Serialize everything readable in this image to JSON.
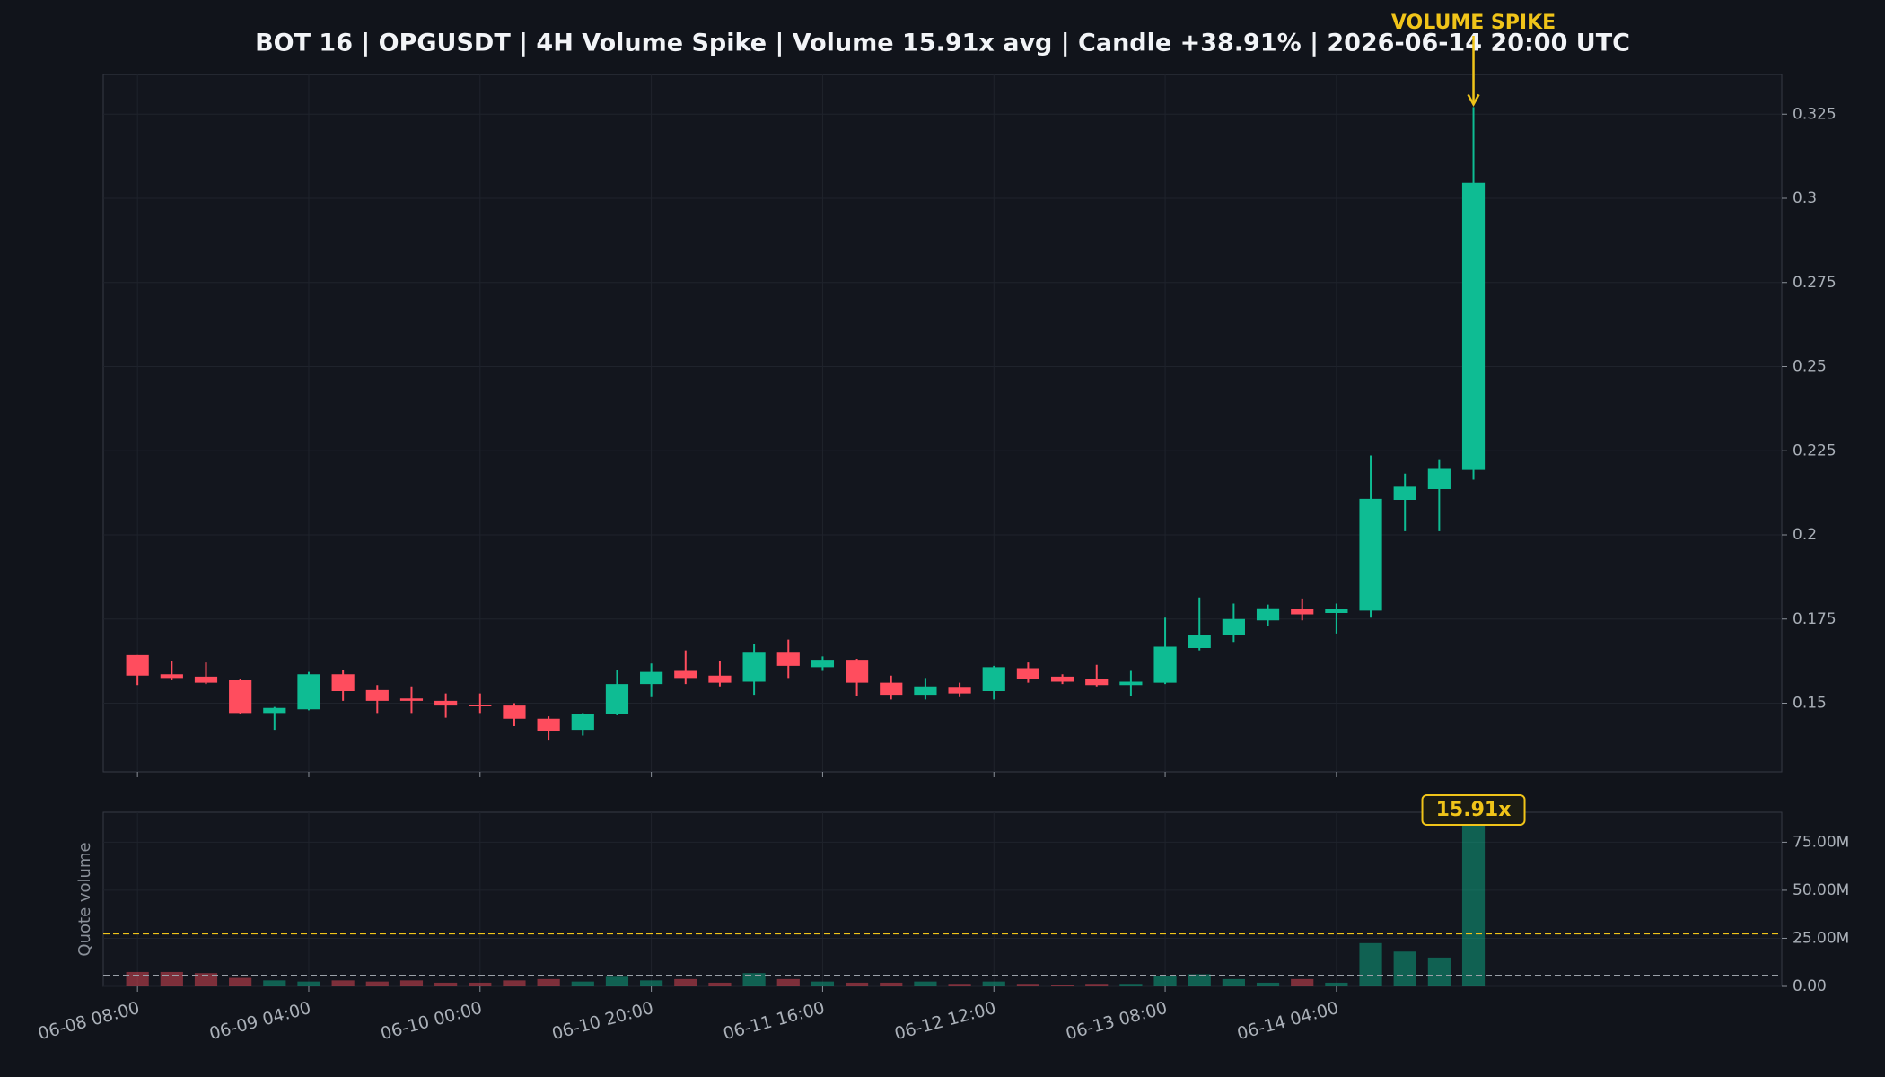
{
  "chart_data": [
    {
      "type": "candlestick",
      "title": "BOT 16 | OPGUSDT | 4H Volume Spike | Volume 15.91x avg | Candle +38.91% | 2026-06-14 20:00 UTC",
      "annotation": "VOLUME SPIKE",
      "categories": [
        "06-08 08:00",
        null,
        null,
        null,
        null,
        "06-09 04:00",
        null,
        null,
        null,
        null,
        "06-10 00:00",
        null,
        null,
        null,
        null,
        "06-10 20:00",
        null,
        null,
        null,
        null,
        "06-11 16:00",
        null,
        null,
        null,
        null,
        "06-12 12:00",
        null,
        null,
        null,
        null,
        "06-13 08:00",
        null,
        null,
        null,
        null,
        "06-14 04:00",
        null,
        null,
        null,
        null
      ],
      "open": [
        0.1643,
        0.1586,
        0.1579,
        0.1568,
        0.1471,
        0.1482,
        0.1586,
        0.1539,
        0.1514,
        0.1507,
        0.1496,
        0.1493,
        0.1454,
        0.1421,
        0.1468,
        0.1557,
        0.1596,
        0.1582,
        0.1564,
        0.165,
        0.1607,
        0.1629,
        0.1561,
        0.1525,
        0.1546,
        0.1536,
        0.1604,
        0.1579,
        0.1571,
        0.1554,
        0.1561,
        0.1664,
        0.1704,
        0.1746,
        0.1779,
        0.1768,
        0.1775,
        0.2104,
        0.2136,
        0.2193
      ],
      "high": [
        0.1643,
        0.1625,
        0.1621,
        0.1571,
        0.1489,
        0.1593,
        0.16,
        0.1554,
        0.155,
        0.1529,
        0.1529,
        0.15,
        0.1461,
        0.1471,
        0.16,
        0.1618,
        0.1657,
        0.1625,
        0.1675,
        0.1689,
        0.1639,
        0.1632,
        0.1582,
        0.1575,
        0.1561,
        0.1611,
        0.1621,
        0.1586,
        0.1614,
        0.1596,
        0.1754,
        0.1814,
        0.1796,
        0.1793,
        0.1811,
        0.1796,
        0.2236,
        0.2182,
        0.2225,
        0.3271
      ],
      "low": [
        0.1554,
        0.1568,
        0.1557,
        0.1468,
        0.1421,
        0.1479,
        0.1507,
        0.1471,
        0.1471,
        0.1457,
        0.1471,
        0.1432,
        0.1389,
        0.1404,
        0.1464,
        0.1518,
        0.1557,
        0.155,
        0.1525,
        0.1575,
        0.1596,
        0.1521,
        0.1511,
        0.1511,
        0.1518,
        0.1511,
        0.1561,
        0.1557,
        0.155,
        0.1521,
        0.1557,
        0.1657,
        0.1682,
        0.1729,
        0.1746,
        0.1707,
        0.1754,
        0.2011,
        0.2011,
        0.2164
      ],
      "close": [
        0.1582,
        0.1575,
        0.1561,
        0.1471,
        0.1486,
        0.1586,
        0.1536,
        0.1507,
        0.1507,
        0.1493,
        0.1493,
        0.1454,
        0.1418,
        0.1468,
        0.1557,
        0.1593,
        0.1575,
        0.1561,
        0.165,
        0.1611,
        0.1629,
        0.1561,
        0.1525,
        0.155,
        0.1529,
        0.1607,
        0.1571,
        0.1564,
        0.1554,
        0.1564,
        0.1668,
        0.1704,
        0.175,
        0.1782,
        0.1764,
        0.1779,
        0.2107,
        0.2143,
        0.2196,
        0.3046
      ],
      "up_color": "#0ebc93",
      "down_color": "#ff4d5e",
      "annotation_color": "#f0c419",
      "ylim": [
        0.1296,
        0.3368
      ],
      "yticks": [
        0.15,
        0.175,
        0.2,
        0.225,
        0.25,
        0.275,
        0.3,
        0.325
      ],
      "grid": true
    },
    {
      "type": "bar",
      "ylabel": "Quote volume",
      "annotation": "15.91x",
      "values": [
        7500000,
        7500000,
        6900000,
        4400000,
        3100000,
        2500000,
        3100000,
        2500000,
        3100000,
        1900000,
        1900000,
        3100000,
        3800000,
        2500000,
        5000000,
        3100000,
        3800000,
        1900000,
        6900000,
        3800000,
        2500000,
        1900000,
        1900000,
        2500000,
        1300000,
        2500000,
        1300000,
        600000,
        1300000,
        1300000,
        5600000,
        6300000,
        3800000,
        1900000,
        3800000,
        1900000,
        22500000,
        18100000,
        15000000,
        89000000
      ],
      "reference_lines": [
        {
          "value": 27500000,
          "color": "#f0c419"
        },
        {
          "value": 5600000,
          "color": "#9aa0a8"
        }
      ],
      "ylim": [
        0,
        90600000
      ],
      "yticks": [
        {
          "value": 0,
          "label": "0.00"
        },
        {
          "value": 25000000,
          "label": "25.00M"
        },
        {
          "value": 50000000,
          "label": "50.00M"
        },
        {
          "value": 75000000,
          "label": "75.00M"
        }
      ],
      "grid": true
    }
  ]
}
